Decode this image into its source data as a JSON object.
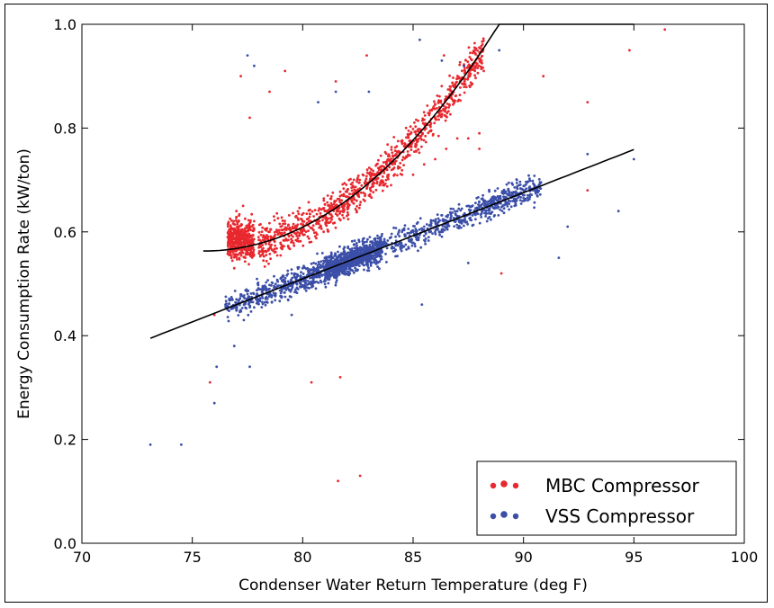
{
  "chart_data": {
    "type": "scatter",
    "title": "",
    "xlabel": "Condenser Water Return Temperature (deg F)",
    "ylabel": "Energy Consumption Rate (kW/ton)",
    "xlim": [
      70,
      100
    ],
    "ylim": [
      0.0,
      1.0
    ],
    "xticks": [
      70,
      75,
      80,
      85,
      90,
      95,
      100
    ],
    "yticks": [
      0.0,
      0.2,
      0.4,
      0.6,
      0.8,
      1.0
    ],
    "ytick_labels": [
      "0.0",
      "0.2",
      "0.4",
      "0.6",
      "0.8",
      "1.0"
    ],
    "grid": false,
    "legend_position": "lower-right",
    "series": [
      {
        "name": "MBC Compressor",
        "color": "#e8282e",
        "scatter_summary": {
          "x_range": [
            75.5,
            96.4
          ],
          "main_cloud": "follows fitted curve, spread about +/-0.05",
          "dense_cluster": {
            "x_range": [
              76.5,
              77.8
            ],
            "y_range": [
              0.5,
              0.66
            ]
          }
        },
        "points": [
          [
            77.0,
            0.64
          ],
          [
            77.2,
            0.6
          ],
          [
            76.8,
            0.57
          ],
          [
            77.4,
            0.55
          ],
          [
            77.1,
            0.62
          ],
          [
            76.6,
            0.59
          ],
          [
            77.5,
            0.58
          ],
          [
            76.9,
            0.53
          ],
          [
            77.3,
            0.65
          ],
          [
            77.6,
            0.61
          ],
          [
            78.0,
            0.59
          ],
          [
            78.5,
            0.6
          ],
          [
            79.0,
            0.61
          ],
          [
            79.5,
            0.6
          ],
          [
            80.0,
            0.62
          ],
          [
            80.5,
            0.63
          ],
          [
            81.0,
            0.64
          ],
          [
            81.5,
            0.65
          ],
          [
            82.0,
            0.66
          ],
          [
            82.5,
            0.67
          ],
          [
            83.0,
            0.67
          ],
          [
            83.5,
            0.69
          ],
          [
            84.0,
            0.69
          ],
          [
            84.5,
            0.71
          ],
          [
            85.0,
            0.71
          ],
          [
            85.5,
            0.73
          ],
          [
            86.0,
            0.74
          ],
          [
            86.5,
            0.76
          ],
          [
            87.0,
            0.78
          ],
          [
            87.5,
            0.78
          ],
          [
            88.0,
            0.79
          ],
          [
            88.0,
            0.76
          ],
          [
            76.0,
            0.44
          ],
          [
            75.8,
            0.31
          ],
          [
            77.2,
            0.9
          ],
          [
            77.6,
            0.82
          ],
          [
            78.5,
            0.87
          ],
          [
            79.2,
            0.91
          ],
          [
            81.5,
            0.89
          ],
          [
            82.9,
            0.94
          ],
          [
            86.4,
            0.94
          ],
          [
            88.2,
            0.91
          ],
          [
            90.9,
            0.9
          ],
          [
            94.8,
            0.95
          ],
          [
            96.4,
            0.99
          ],
          [
            92.9,
            0.85
          ],
          [
            92.9,
            0.68
          ],
          [
            89.0,
            0.52
          ],
          [
            80.4,
            0.31
          ],
          [
            81.7,
            0.32
          ],
          [
            81.6,
            0.12
          ],
          [
            82.6,
            0.13
          ]
        ]
      },
      {
        "name": "VSS Compressor",
        "color": "#3b4ea8",
        "scatter_summary": {
          "x_range": [
            73.1,
            95.0
          ],
          "main_cloud": "follows fitted line, spread about +/-0.04",
          "dense_cluster": {
            "x_range": [
              81.0,
              83.5
            ],
            "y_range": [
              0.5,
              0.6
            ]
          }
        },
        "points": [
          [
            76.5,
            0.46
          ],
          [
            77.0,
            0.47
          ],
          [
            77.5,
            0.48
          ],
          [
            78.0,
            0.49
          ],
          [
            78.5,
            0.49
          ],
          [
            79.0,
            0.51
          ],
          [
            79.5,
            0.52
          ],
          [
            80.0,
            0.53
          ],
          [
            80.5,
            0.54
          ],
          [
            81.0,
            0.55
          ],
          [
            81.3,
            0.56
          ],
          [
            81.6,
            0.55
          ],
          [
            81.9,
            0.57
          ],
          [
            82.2,
            0.55
          ],
          [
            82.5,
            0.56
          ],
          [
            82.8,
            0.58
          ],
          [
            83.0,
            0.57
          ],
          [
            83.5,
            0.58
          ],
          [
            84.0,
            0.59
          ],
          [
            84.5,
            0.6
          ],
          [
            85.0,
            0.6
          ],
          [
            85.5,
            0.61
          ],
          [
            86.0,
            0.62
          ],
          [
            86.5,
            0.63
          ],
          [
            87.0,
            0.64
          ],
          [
            87.5,
            0.65
          ],
          [
            88.0,
            0.65
          ],
          [
            88.5,
            0.66
          ],
          [
            89.5,
            0.67
          ],
          [
            90.0,
            0.68
          ],
          [
            90.5,
            0.69
          ],
          [
            89.7,
            0.7
          ],
          [
            73.1,
            0.19
          ],
          [
            74.5,
            0.19
          ],
          [
            76.0,
            0.27
          ],
          [
            76.1,
            0.34
          ],
          [
            77.6,
            0.34
          ],
          [
            76.9,
            0.38
          ],
          [
            77.5,
            0.94
          ],
          [
            77.8,
            0.92
          ],
          [
            81.5,
            0.87
          ],
          [
            83.0,
            0.87
          ],
          [
            85.3,
            0.97
          ],
          [
            86.3,
            0.93
          ],
          [
            87.3,
            0.92
          ],
          [
            88.9,
            0.95
          ],
          [
            94.3,
            0.64
          ],
          [
            95.0,
            0.74
          ],
          [
            92.9,
            0.75
          ],
          [
            91.6,
            0.55
          ],
          [
            92.0,
            0.61
          ],
          [
            87.5,
            0.54
          ],
          [
            85.4,
            0.46
          ],
          [
            79.5,
            0.44
          ],
          [
            80.7,
            0.85
          ]
        ]
      }
    ],
    "fit_curves": [
      {
        "series": "MBC Compressor",
        "color": "#000000",
        "x_range": [
          75.5,
          95.0
        ],
        "coeffs": [
          0.563,
          0.0,
          0.0022,
          1.78e-05
        ]
      },
      {
        "series": "VSS Compressor",
        "color": "#000000",
        "x_range": [
          73.1,
          95.0
        ],
        "coeffs": [
          0.395,
          0.0166,
          0.0
        ]
      }
    ]
  }
}
